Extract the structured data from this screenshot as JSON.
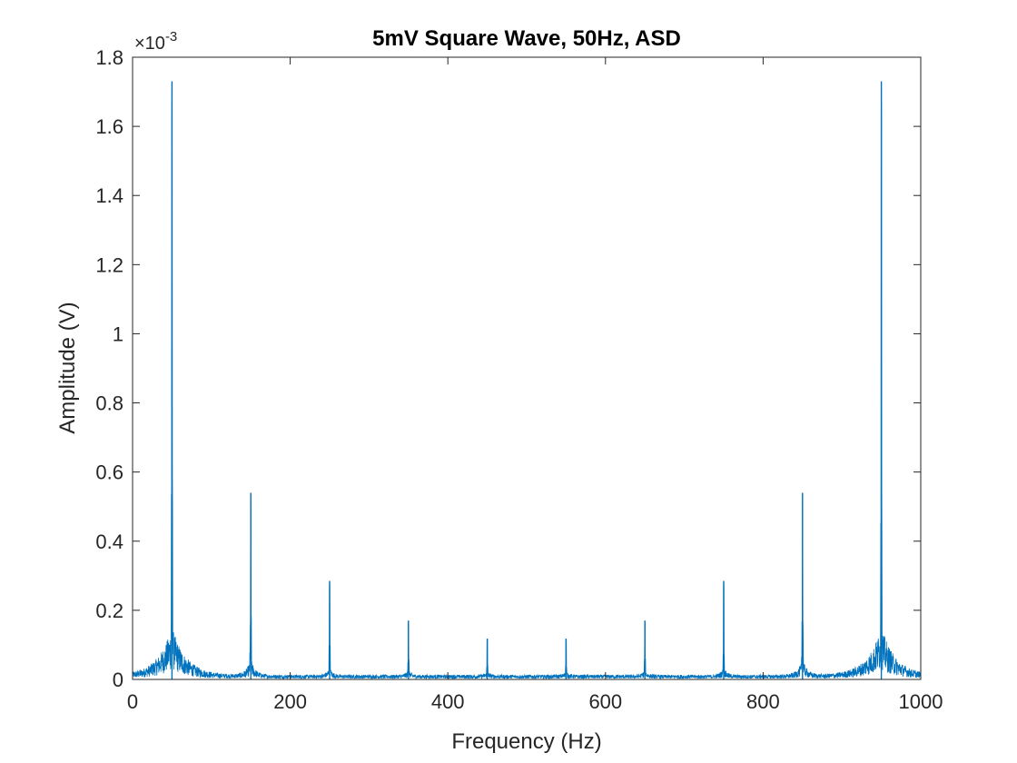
{
  "chart_data": {
    "type": "line",
    "title": "5mV Square Wave, 50Hz, ASD",
    "xlabel": "Frequency (Hz)",
    "ylabel": "Amplitude (V)",
    "xlim": [
      0,
      1000
    ],
    "ylim": [
      0,
      0.0018
    ],
    "y_multiplier_label": "×10",
    "y_multiplier_exponent": "-3",
    "x_ticks": [
      0,
      200,
      400,
      600,
      800,
      1000
    ],
    "x_tick_labels": [
      "0",
      "200",
      "400",
      "600",
      "800",
      "1000"
    ],
    "y_ticks": [
      0,
      0.0002,
      0.0004,
      0.0006,
      0.0008,
      0.001,
      0.0012,
      0.0014,
      0.0016,
      0.0018
    ],
    "y_tick_labels": [
      "0",
      "0.2",
      "0.4",
      "0.6",
      "0.8",
      "1",
      "1.2",
      "1.4",
      "1.6",
      "1.8"
    ],
    "grid": false,
    "series": [
      {
        "color": "#0072BD",
        "peaks": [
          {
            "x": 50,
            "y": 0.00173
          },
          {
            "x": 150,
            "y": 0.00054
          },
          {
            "x": 250,
            "y": 0.000285
          },
          {
            "x": 350,
            "y": 0.00017
          },
          {
            "x": 450,
            "y": 0.000118
          },
          {
            "x": 550,
            "y": 0.000118
          },
          {
            "x": 650,
            "y": 0.00017
          },
          {
            "x": 750,
            "y": 0.000285
          },
          {
            "x": 850,
            "y": 0.00054
          },
          {
            "x": 950,
            "y": 0.00173
          }
        ],
        "noise_floor": 1e-05
      }
    ]
  }
}
